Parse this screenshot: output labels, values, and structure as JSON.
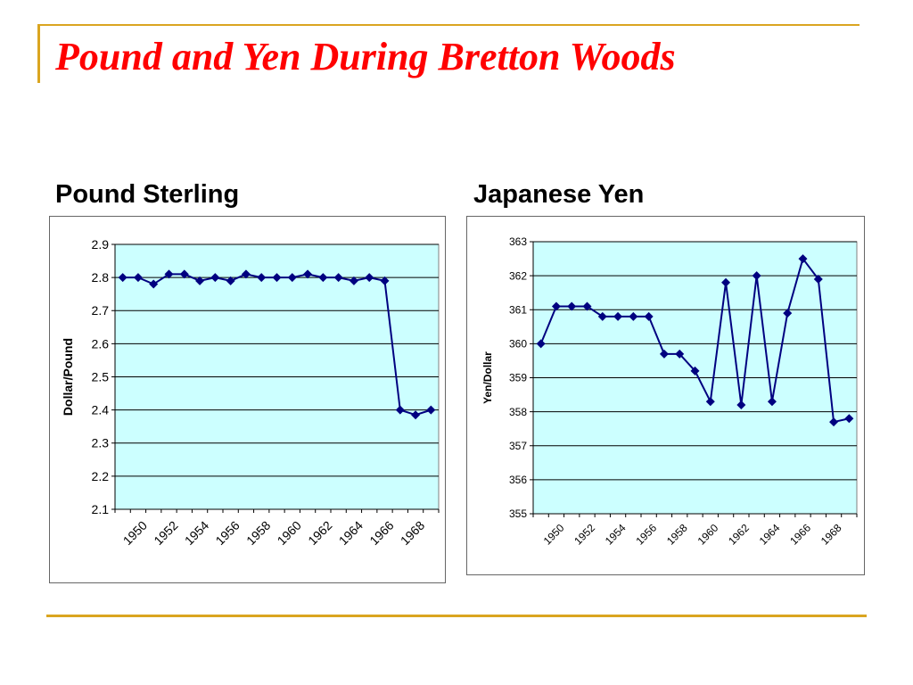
{
  "slide": {
    "title": "Pound and Yen During Bretton Woods",
    "accent_color": "#DAA520",
    "title_color": "#FF0000"
  },
  "charts": {
    "pound": {
      "heading": "Pound Sterling"
    },
    "yen": {
      "heading": "Japanese Yen"
    }
  },
  "chart_data": [
    {
      "type": "line",
      "ylabel": "Dollar/Pound",
      "xlabel": "",
      "ylim": [
        2.1,
        2.9
      ],
      "yticks": [
        "2.1",
        "2.2",
        "2.3",
        "2.4",
        "2.5",
        "2.6",
        "2.7",
        "2.8",
        "2.9"
      ],
      "xticks": [
        "1950",
        "1952",
        "1954",
        "1956",
        "1958",
        "1960",
        "1962",
        "1964",
        "1966",
        "1968"
      ],
      "x": [
        1949,
        1950,
        1951,
        1952,
        1953,
        1954,
        1955,
        1956,
        1957,
        1958,
        1959,
        1960,
        1961,
        1962,
        1963,
        1964,
        1965,
        1966,
        1967,
        1968,
        1969
      ],
      "series": [
        {
          "values": [
            2.8,
            2.8,
            2.78,
            2.81,
            2.81,
            2.79,
            2.8,
            2.79,
            2.81,
            2.8,
            2.8,
            2.8,
            2.81,
            2.8,
            2.8,
            2.79,
            2.8,
            2.79,
            2.4,
            2.385,
            2.4
          ]
        }
      ],
      "grid": true,
      "plot_bg": "#CCFFFF",
      "line_color": "#000080"
    },
    {
      "type": "line",
      "ylabel": "Yen/Dollar",
      "xlabel": "",
      "ylim": [
        355,
        363
      ],
      "yticks": [
        "355",
        "356",
        "357",
        "358",
        "359",
        "360",
        "361",
        "362",
        "363"
      ],
      "xticks": [
        "1950",
        "1952",
        "1954",
        "1956",
        "1958",
        "1960",
        "1962",
        "1964",
        "1966",
        "1968"
      ],
      "x": [
        1949,
        1950,
        1951,
        1952,
        1953,
        1954,
        1955,
        1956,
        1957,
        1958,
        1959,
        1960,
        1961,
        1962,
        1963,
        1964,
        1965,
        1966,
        1967,
        1968,
        1969
      ],
      "series": [
        {
          "values": [
            360.0,
            361.1,
            361.1,
            361.1,
            360.8,
            360.8,
            360.8,
            360.8,
            359.7,
            359.7,
            359.2,
            358.3,
            361.8,
            358.2,
            362.0,
            358.3,
            360.9,
            362.5,
            361.9,
            357.7,
            357.8
          ]
        }
      ],
      "grid": true,
      "plot_bg": "#CCFFFF",
      "line_color": "#000080"
    }
  ]
}
